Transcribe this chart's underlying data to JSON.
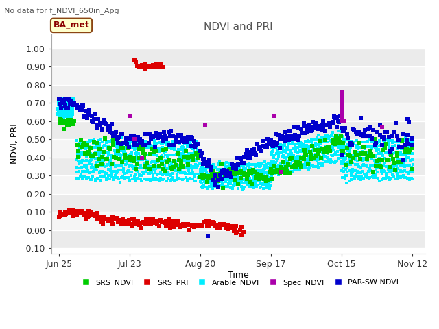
{
  "title": "NDVI and PRI",
  "subtitle": "No data for f_NDVI_650in_Apg",
  "ylabel": "NDVI, PRI",
  "xlabel": "Time",
  "site_label": "BA_met",
  "ylim": [
    -0.1,
    1.05
  ],
  "yticks": [
    -0.1,
    0.0,
    0.1,
    0.2,
    0.3,
    0.4,
    0.5,
    0.6,
    0.7,
    0.8,
    0.9,
    1.0
  ],
  "xtick_labels": [
    "Jun 25",
    "Jul 23",
    "Aug 20",
    "Sep 17",
    "Oct 15",
    "Nov 12"
  ],
  "xtick_positions": [
    0,
    28,
    56,
    84,
    112,
    140
  ],
  "figure_bg": "#ffffff",
  "plot_bg_light": "#f0f0f0",
  "plot_bg_dark": "#e0e0e0",
  "grid_color": "#ffffff",
  "colors": {
    "SRS_NDVI": "#00cc00",
    "SRS_PRI": "#dd0000",
    "Arable_NDVI": "#00eeff",
    "Spec_NDVI": "#aa00aa",
    "PAR_SW_NDVI": "#0000cc"
  },
  "legend": [
    {
      "label": "SRS_NDVI",
      "color": "#00cc00"
    },
    {
      "label": "SRS_PRI",
      "color": "#dd0000"
    },
    {
      "label": "Arable_NDVI",
      "color": "#00eeff"
    },
    {
      "label": "Spec_NDVI",
      "color": "#aa00aa"
    },
    {
      "label": "PAR-SW NDVI",
      "color": "#0000cc"
    }
  ]
}
